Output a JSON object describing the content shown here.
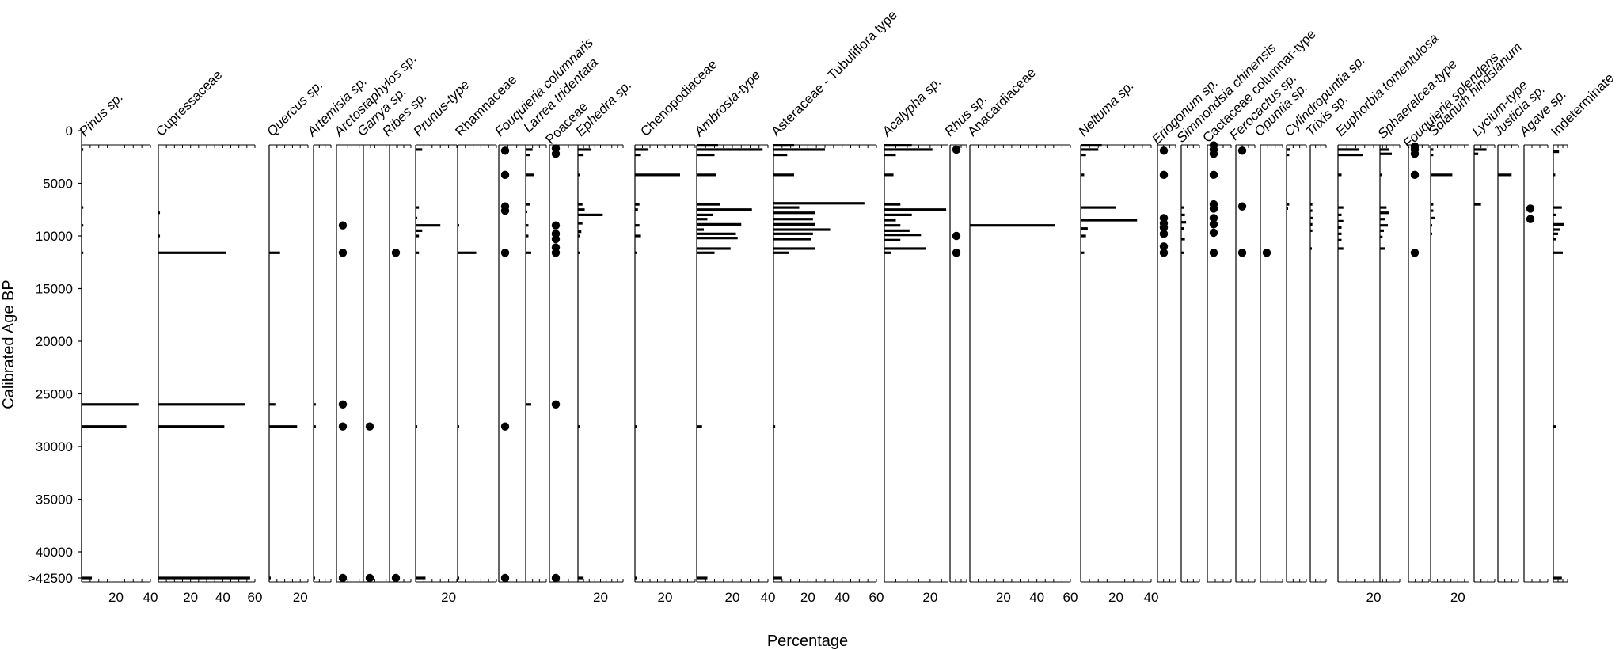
{
  "chart_data": {
    "type": "bar",
    "subtype": "pollen-diagram",
    "ylabel": "Calibrated Age BP",
    "xlabel": "Percentage",
    "y_ticks": [
      {
        "value": 0,
        "label": "0"
      },
      {
        "value": 5000,
        "label": "5000"
      },
      {
        "value": 10000,
        "label": "10000"
      },
      {
        "value": 15000,
        "label": "15000"
      },
      {
        "value": 20000,
        "label": "20000"
      },
      {
        "value": 25000,
        "label": "25000"
      },
      {
        "value": 30000,
        "label": "30000"
      },
      {
        "value": 35000,
        "label": "35000"
      },
      {
        "value": 40000,
        "label": "40000"
      },
      {
        "value": 42500,
        "label": ">42500"
      }
    ],
    "ylim": [
      0,
      42500
    ],
    "y_reversed": true,
    "series": [
      {
        "name": "Pinus sp.",
        "italic": true,
        "xmax": 40,
        "ticks": [
          20,
          40
        ],
        "bars": [
          [
            1800,
            1
          ],
          [
            7300,
            1
          ],
          [
            9000,
            1
          ],
          [
            11600,
            1
          ],
          [
            26000,
            33
          ],
          [
            28100,
            26
          ],
          [
            42500,
            6
          ]
        ]
      },
      {
        "name": "Cupressaceae",
        "italic": false,
        "xmax": 60,
        "ticks": [
          20,
          40,
          60
        ],
        "bars": [
          [
            7800,
            1
          ],
          [
            10000,
            1
          ],
          [
            11600,
            42
          ],
          [
            26000,
            54
          ],
          [
            28100,
            41
          ],
          [
            42500,
            57
          ]
        ]
      },
      {
        "name": "Quercus sp.",
        "italic": true,
        "xmax": 25,
        "ticks": [
          20
        ],
        "bars": [
          [
            11600,
            7
          ],
          [
            26000,
            4
          ],
          [
            28100,
            18
          ],
          [
            42500,
            1
          ]
        ]
      },
      {
        "name": "Artemisia sp.",
        "italic": true,
        "xmax": 15,
        "ticks": [],
        "bars": [
          [
            26000,
            2
          ],
          [
            28100,
            2
          ],
          [
            42500,
            1
          ]
        ]
      },
      {
        "name": "Arctostaphylos sp.",
        "italic": true,
        "xmax": 15,
        "ticks": [],
        "dots": [
          9000,
          11600,
          26000,
          28100,
          42500
        ]
      },
      {
        "name": "Garrya sp.",
        "italic": true,
        "xmax": 15,
        "ticks": [],
        "dots": [
          28100,
          42500
        ]
      },
      {
        "name": "Ribes sp.",
        "italic": true,
        "xmax": 15,
        "ticks": [],
        "dots": [
          11600,
          42500
        ]
      },
      {
        "name": "Prunus-type",
        "italic": true,
        "xmax": 25,
        "ticks": [
          20
        ],
        "bars": [
          [
            1800,
            4
          ],
          [
            7300,
            2
          ],
          [
            8300,
            1
          ],
          [
            9000,
            15
          ],
          [
            9500,
            4
          ],
          [
            10000,
            2
          ],
          [
            11600,
            2
          ],
          [
            28100,
            1
          ],
          [
            42500,
            6
          ]
        ]
      },
      {
        "name": "Rhamnaceae",
        "italic": false,
        "xmax": 25,
        "ticks": [],
        "bars": [
          [
            9000,
            1
          ],
          [
            11600,
            12
          ],
          [
            28100,
            1
          ],
          [
            42500,
            1
          ]
        ]
      },
      {
        "name": "Fouquieria columnaris",
        "italic": true,
        "xmax": 15,
        "ticks": [],
        "dots": [
          1900,
          4200,
          7200,
          7600,
          11600,
          28100,
          42500
        ]
      },
      {
        "name": "Larrea tridentata",
        "italic": true,
        "xmax": 15,
        "ticks": [],
        "bars": [
          [
            1800,
            5
          ],
          [
            2300,
            3
          ],
          [
            4200,
            6
          ],
          [
            7000,
            3
          ],
          [
            7700,
            1
          ],
          [
            9000,
            2
          ],
          [
            10000,
            2
          ],
          [
            11600,
            4
          ],
          [
            26000,
            4
          ]
        ]
      },
      {
        "name": "Poaceae",
        "italic": false,
        "xmax": 15,
        "ticks": [],
        "dots": [
          1700,
          2200,
          9000,
          9800,
          10300,
          11100,
          11600,
          26000,
          42500
        ]
      },
      {
        "name": "Ephedra sp.",
        "italic": true,
        "xmax": 40,
        "ticks": [
          20
        ],
        "bars": [
          [
            1800,
            12
          ],
          [
            2300,
            5
          ],
          [
            4200,
            2
          ],
          [
            7000,
            4
          ],
          [
            7500,
            6
          ],
          [
            8000,
            22
          ],
          [
            8800,
            4
          ],
          [
            9600,
            3
          ],
          [
            10000,
            2
          ],
          [
            11600,
            2
          ],
          [
            28100,
            1
          ],
          [
            42500,
            5
          ]
        ]
      },
      {
        "name": "Chenopodiaceae",
        "italic": false,
        "xmax": 40,
        "ticks": [
          20
        ],
        "bars": [
          [
            1800,
            9
          ],
          [
            2300,
            4
          ],
          [
            4200,
            30
          ],
          [
            7000,
            3
          ],
          [
            7500,
            2
          ],
          [
            9000,
            3
          ],
          [
            10000,
            4
          ],
          [
            11600,
            1
          ],
          [
            28100,
            1
          ],
          [
            42500,
            1
          ]
        ]
      },
      {
        "name": "Ambrosia-type",
        "italic": true,
        "xmax": 40,
        "ticks": [
          20,
          40
        ],
        "bars": [
          [
            1400,
            12
          ],
          [
            1800,
            37
          ],
          [
            2300,
            10
          ],
          [
            4200,
            11
          ],
          [
            7000,
            13
          ],
          [
            7500,
            31
          ],
          [
            8000,
            9
          ],
          [
            8400,
            6
          ],
          [
            8900,
            25
          ],
          [
            9400,
            4
          ],
          [
            9800,
            22
          ],
          [
            10200,
            23
          ],
          [
            11200,
            19
          ],
          [
            11600,
            10
          ],
          [
            28100,
            3
          ],
          [
            42500,
            6
          ]
        ]
      },
      {
        "name": "Asteraceae - Tubuliflora type",
        "italic": false,
        "xmax": 60,
        "ticks": [
          20,
          40,
          60
        ],
        "bars": [
          [
            1400,
            12
          ],
          [
            1800,
            30
          ],
          [
            2300,
            8
          ],
          [
            4200,
            12
          ],
          [
            6900,
            53
          ],
          [
            7300,
            15
          ],
          [
            7800,
            24
          ],
          [
            8400,
            23
          ],
          [
            8900,
            24
          ],
          [
            9400,
            33
          ],
          [
            9800,
            23
          ],
          [
            10300,
            22
          ],
          [
            11200,
            24
          ],
          [
            11600,
            9
          ],
          [
            28100,
            1
          ],
          [
            42500,
            5
          ]
        ]
      },
      {
        "name": "Acalypha sp.",
        "italic": true,
        "xmax": 28,
        "ticks": [
          20
        ],
        "bars": [
          [
            1400,
            12
          ],
          [
            1800,
            21
          ],
          [
            2300,
            5
          ],
          [
            4200,
            4
          ],
          [
            7000,
            7
          ],
          [
            7500,
            27
          ],
          [
            8000,
            12
          ],
          [
            8500,
            5
          ],
          [
            9000,
            7
          ],
          [
            9500,
            11
          ],
          [
            9900,
            16
          ],
          [
            10400,
            7
          ],
          [
            11200,
            18
          ],
          [
            11600,
            3
          ]
        ]
      },
      {
        "name": "Rhus sp.",
        "italic": true,
        "xmax": 15,
        "ticks": [],
        "dots": [
          1800,
          10000,
          11600
        ]
      },
      {
        "name": "Anacardiaceae",
        "italic": false,
        "xmax": 60,
        "ticks": [
          20,
          40,
          60
        ],
        "bars": [
          [
            9000,
            51
          ]
        ]
      },
      {
        "name": "Neltuma sp.",
        "italic": true,
        "xmax": 40,
        "ticks": [
          20,
          40
        ],
        "bars": [
          [
            1400,
            12
          ],
          [
            1800,
            10
          ],
          [
            2300,
            3
          ],
          [
            4200,
            2
          ],
          [
            7300,
            20
          ],
          [
            8500,
            32
          ],
          [
            9300,
            4
          ],
          [
            10000,
            3
          ],
          [
            11600,
            2
          ]
        ]
      },
      {
        "name": "Eriogonum sp.",
        "italic": true,
        "xmax": 15,
        "ticks": [],
        "dots": [
          1900,
          4200,
          8300,
          8800,
          9200,
          9800,
          11000,
          11600
        ]
      },
      {
        "name": "Simmondsia chinensis",
        "italic": true,
        "xmax": 15,
        "ticks": [],
        "bars": [
          [
            7300,
            2
          ],
          [
            8000,
            3
          ],
          [
            8700,
            4
          ],
          [
            9300,
            2
          ],
          [
            10300,
            3
          ],
          [
            11600,
            2
          ]
        ]
      },
      {
        "name": "Cactaceae columnar-type",
        "italic": false,
        "xmax": 15,
        "ticks": [],
        "dots": [
          1400,
          1800,
          2200,
          4200,
          7000,
          7400,
          8300,
          8900,
          9700,
          11600
        ]
      },
      {
        "name": "Ferocactus sp.",
        "italic": true,
        "xmax": 15,
        "ticks": [],
        "dots": [
          1900,
          7200,
          11600
        ]
      },
      {
        "name": "Opuntia sp.",
        "italic": true,
        "xmax": 15,
        "ticks": [],
        "dots": [
          11600
        ]
      },
      {
        "name": "Cylindropuntia sp.",
        "italic": true,
        "xmax": 15,
        "ticks": [],
        "bars": [
          [
            1800,
            3
          ],
          [
            2300,
            2
          ],
          [
            7000,
            2
          ],
          [
            7400,
            1
          ]
        ]
      },
      {
        "name": "Trixis sp.",
        "italic": true,
        "xmax": 15,
        "ticks": [],
        "bars": [
          [
            7000,
            2
          ],
          [
            7600,
            2
          ],
          [
            8300,
            3
          ],
          [
            8900,
            2
          ],
          [
            9500,
            2
          ],
          [
            11200,
            1
          ]
        ]
      },
      {
        "name": "Euphorbia tomentulosa",
        "italic": true,
        "xmax": 28,
        "ticks": [
          20
        ],
        "bars": [
          [
            1800,
            12
          ],
          [
            2300,
            14
          ],
          [
            4200,
            2
          ],
          [
            7300,
            3
          ],
          [
            8000,
            2
          ],
          [
            8600,
            3
          ],
          [
            9200,
            2
          ],
          [
            9800,
            2
          ],
          [
            10400,
            2
          ],
          [
            11200,
            3
          ]
        ]
      },
      {
        "name": "Sphaeralcea-type",
        "italic": true,
        "xmax": 15,
        "ticks": [],
        "bars": [
          [
            1800,
            7
          ],
          [
            2200,
            9
          ],
          [
            4200,
            1
          ],
          [
            7300,
            5
          ],
          [
            7800,
            7
          ],
          [
            8400,
            4
          ],
          [
            9000,
            6
          ],
          [
            9500,
            3
          ],
          [
            10100,
            2
          ],
          [
            11200,
            4
          ]
        ]
      },
      {
        "name": "Fouquieria splendens",
        "italic": true,
        "xmax": 15,
        "ticks": [],
        "dots": [
          1500,
          1800,
          2200,
          4200,
          11600
        ]
      },
      {
        "name": "Solanum hindsianum",
        "italic": true,
        "xmax": 28,
        "ticks": [
          20
        ],
        "bars": [
          [
            1800,
            2
          ],
          [
            2300,
            2
          ],
          [
            4200,
            16
          ],
          [
            7000,
            2
          ],
          [
            7600,
            2
          ],
          [
            8300,
            3
          ],
          [
            9000,
            1
          ],
          [
            9800,
            1
          ]
        ]
      },
      {
        "name": "Lycium-type",
        "italic": true,
        "xmax": 15,
        "ticks": [],
        "bars": [
          [
            1800,
            9
          ],
          [
            2200,
            3
          ],
          [
            7000,
            5
          ]
        ]
      },
      {
        "name": "Justicia sp.",
        "italic": true,
        "xmax": 15,
        "ticks": [],
        "bars": [
          [
            4200,
            10
          ]
        ]
      },
      {
        "name": "Agave sp.",
        "italic": true,
        "xmax": 15,
        "ticks": [],
        "dots": [
          7400,
          8400
        ]
      },
      {
        "name": "Indeterminate",
        "italic": false,
        "xmax": 15,
        "ticks": [],
        "bars": [
          [
            2000,
            6
          ],
          [
            4200,
            2
          ],
          [
            7300,
            9
          ],
          [
            8000,
            3
          ],
          [
            8900,
            11
          ],
          [
            9400,
            7
          ],
          [
            9800,
            5
          ],
          [
            10300,
            3
          ],
          [
            11600,
            10
          ],
          [
            28100,
            3
          ],
          [
            42500,
            9
          ]
        ]
      }
    ]
  }
}
